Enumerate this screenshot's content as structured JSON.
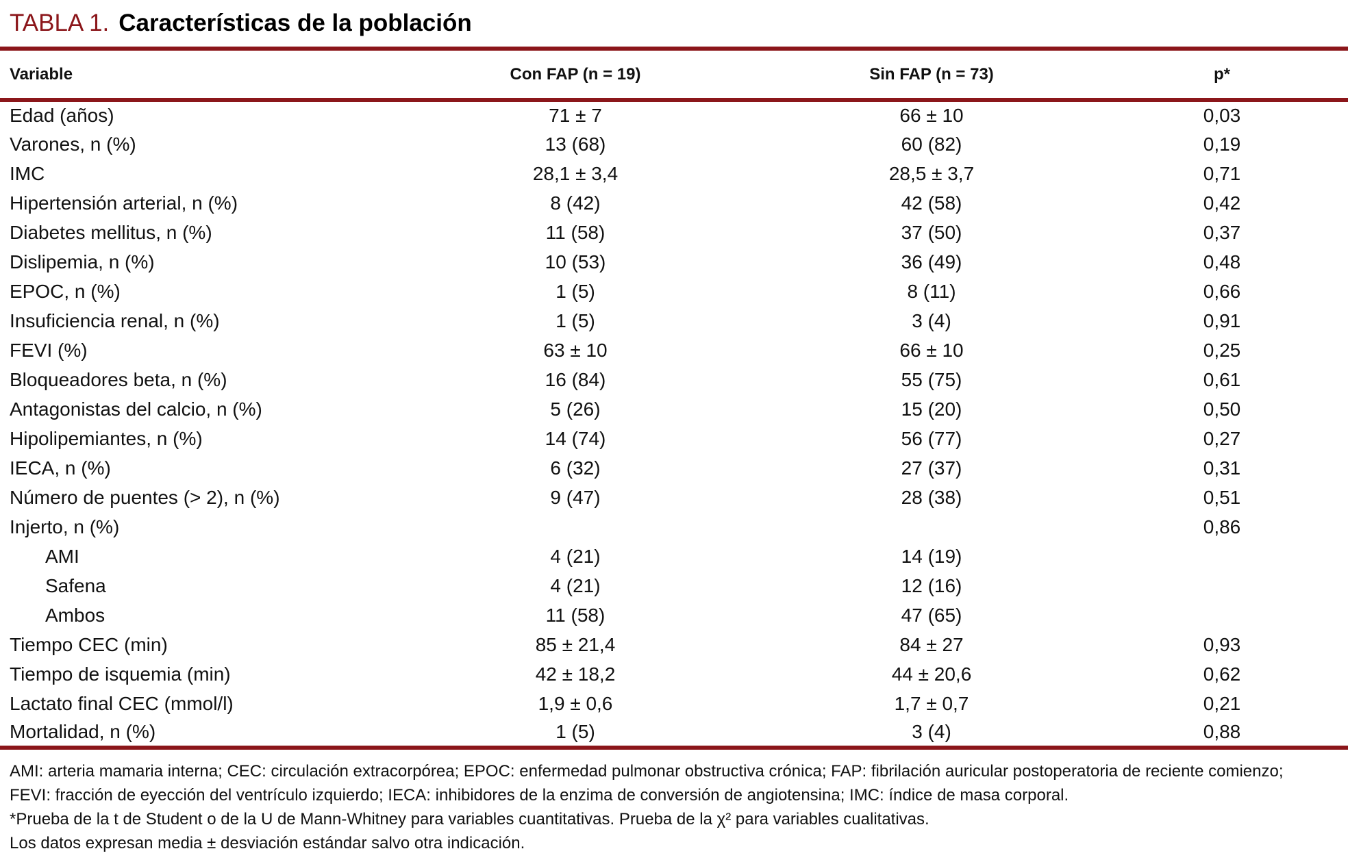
{
  "accent_color": "#8b161a",
  "title": {
    "label": "TABLA 1.",
    "text": "Características de la población"
  },
  "table": {
    "columns": [
      "Variable",
      "Con FAP (n = 19)",
      "Sin FAP (n = 73)",
      "p*"
    ],
    "rows": [
      {
        "variable": "Edad (años)",
        "con_fap": "71 ± 7",
        "sin_fap": "66 ± 10",
        "p": "0,03",
        "indent": false
      },
      {
        "variable": "Varones, n (%)",
        "con_fap": "13 (68)",
        "sin_fap": "60 (82)",
        "p": "0,19",
        "indent": false
      },
      {
        "variable": "IMC",
        "con_fap": "28,1 ± 3,4",
        "sin_fap": "28,5 ± 3,7",
        "p": "0,71",
        "indent": false
      },
      {
        "variable": "Hipertensión arterial, n (%)",
        "con_fap": "8 (42)",
        "sin_fap": "42 (58)",
        "p": "0,42",
        "indent": false
      },
      {
        "variable": "Diabetes mellitus, n (%)",
        "con_fap": "11 (58)",
        "sin_fap": "37 (50)",
        "p": "0,37",
        "indent": false
      },
      {
        "variable": "Dislipemia, n (%)",
        "con_fap": "10 (53)",
        "sin_fap": "36 (49)",
        "p": "0,48",
        "indent": false
      },
      {
        "variable": "EPOC, n (%)",
        "con_fap": "1 (5)",
        "sin_fap": "8 (11)",
        "p": "0,66",
        "indent": false
      },
      {
        "variable": "Insuficiencia renal, n (%)",
        "con_fap": "1 (5)",
        "sin_fap": "3 (4)",
        "p": "0,91",
        "indent": false
      },
      {
        "variable": "FEVI (%)",
        "con_fap": "63 ± 10",
        "sin_fap": "66 ± 10",
        "p": "0,25",
        "indent": false
      },
      {
        "variable": "Bloqueadores beta, n (%)",
        "con_fap": "16 (84)",
        "sin_fap": "55 (75)",
        "p": "0,61",
        "indent": false
      },
      {
        "variable": "Antagonistas del calcio, n (%)",
        "con_fap": "5 (26)",
        "sin_fap": "15 (20)",
        "p": "0,50",
        "indent": false
      },
      {
        "variable": "Hipolipemiantes, n (%)",
        "con_fap": "14 (74)",
        "sin_fap": "56 (77)",
        "p": "0,27",
        "indent": false
      },
      {
        "variable": "IECA, n (%)",
        "con_fap": "6 (32)",
        "sin_fap": "27 (37)",
        "p": "0,31",
        "indent": false
      },
      {
        "variable": "Número de puentes (> 2), n (%)",
        "con_fap": "9 (47)",
        "sin_fap": "28 (38)",
        "p": "0,51",
        "indent": false
      },
      {
        "variable": "Injerto, n (%)",
        "con_fap": "",
        "sin_fap": "",
        "p": "0,86",
        "indent": false
      },
      {
        "variable": "AMI",
        "con_fap": "4 (21)",
        "sin_fap": "14 (19)",
        "p": "",
        "indent": true
      },
      {
        "variable": "Safena",
        "con_fap": "4 (21)",
        "sin_fap": "12 (16)",
        "p": "",
        "indent": true
      },
      {
        "variable": "Ambos",
        "con_fap": "11 (58)",
        "sin_fap": "47 (65)",
        "p": "",
        "indent": true
      },
      {
        "variable": "Tiempo CEC (min)",
        "con_fap": "85 ± 21,4",
        "sin_fap": "84 ± 27",
        "p": "0,93",
        "indent": false
      },
      {
        "variable": "Tiempo de isquemia (min)",
        "con_fap": "42 ± 18,2",
        "sin_fap": "44 ± 20,6",
        "p": "0,62",
        "indent": false
      },
      {
        "variable": "Lactato final CEC (mmol/l)",
        "con_fap": "1,9 ± 0,6",
        "sin_fap": "1,7 ± 0,7",
        "p": "0,21",
        "indent": false
      },
      {
        "variable": "Mortalidad, n (%)",
        "con_fap": "1 (5)",
        "sin_fap": "3 (4)",
        "p": "0,88",
        "indent": false
      }
    ]
  },
  "footnotes": [
    "AMI: arteria mamaria interna; CEC: circulación extracorpórea; EPOC: enfermedad pulmonar obstructiva crónica; FAP: fibrilación auricular postoperatoria de reciente comienzo;",
    "FEVI: fracción de eyección del ventrículo izquierdo; IECA: inhibidores de la enzima de conversión de angiotensina; IMC: índice de masa corporal.",
    "*Prueba de la t de Student o de la U de Mann-Whitney para variables cuantitativas. Prueba de la χ² para variables cualitativas.",
    "Los datos expresan media ± desviación estándar salvo otra indicación."
  ]
}
